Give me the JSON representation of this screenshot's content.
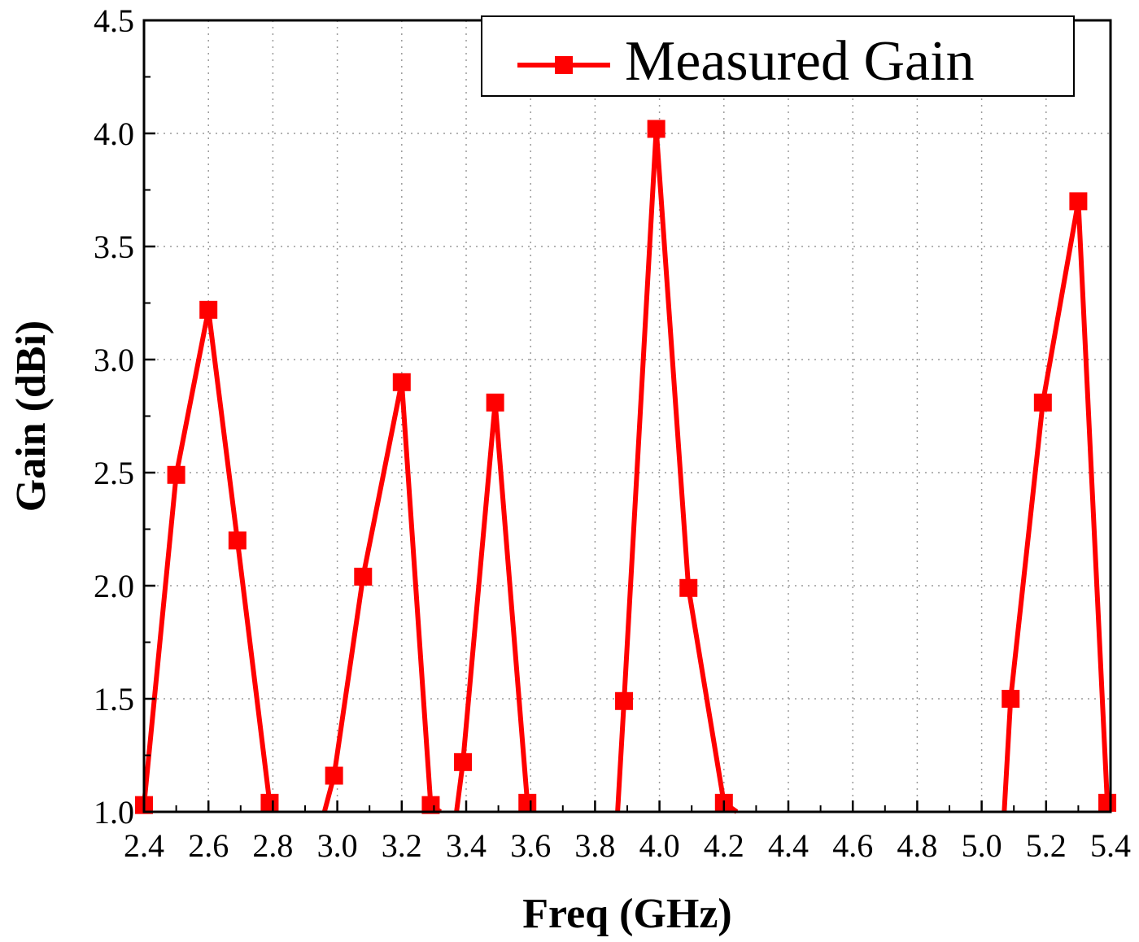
{
  "chart_data": {
    "type": "line",
    "title": "",
    "xlabel": "Freq (GHz)",
    "ylabel": "Gain (dBi)",
    "xlim": [
      2.4,
      5.4
    ],
    "ylim": [
      1.0,
      4.5
    ],
    "x_ticks": [
      "2.4",
      "2.6",
      "2.8",
      "3.0",
      "3.2",
      "3.4",
      "3.6",
      "3.8",
      "4.0",
      "4.2",
      "4.4",
      "4.6",
      "4.8",
      "5.0",
      "5.2",
      "5.4"
    ],
    "y_ticks": [
      "1.0",
      "1.5",
      "2.0",
      "2.5",
      "3.0",
      "3.5",
      "4.0",
      "4.5"
    ],
    "grid": true,
    "legend_position": "top-right",
    "series": [
      {
        "name": "Measured Gain",
        "color": "#ff0000",
        "marker": "square",
        "segments": [
          {
            "x": [
              2.4,
              2.5,
              2.6,
              2.69,
              2.79
            ],
            "y": [
              1.03,
              2.49,
              3.22,
              2.2,
              1.04
            ]
          },
          {
            "x": [
              2.96,
              2.99,
              3.08,
              3.2,
              3.29,
              3.32
            ],
            "y": [
              1.0,
              1.16,
              2.04,
              2.9,
              1.03,
              1.0
            ]
          },
          {
            "x": [
              3.37,
              3.39,
              3.49,
              3.59,
              3.6
            ],
            "y": [
              1.0,
              1.22,
              2.81,
              1.04,
              1.0
            ]
          },
          {
            "x": [
              3.87,
              3.89,
              3.99,
              4.09,
              4.2,
              4.24
            ],
            "y": [
              1.0,
              1.49,
              4.02,
              1.99,
              1.04,
              1.0
            ]
          },
          {
            "x": [
              5.07,
              5.09,
              5.19,
              5.3,
              5.39
            ],
            "y": [
              1.0,
              1.5,
              2.81,
              3.7,
              1.04
            ]
          }
        ],
        "markers": {
          "x": [
            2.4,
            2.5,
            2.6,
            2.69,
            2.79,
            2.99,
            3.08,
            3.2,
            3.29,
            3.39,
            3.49,
            3.59,
            3.89,
            3.99,
            4.09,
            4.2,
            5.09,
            5.19,
            5.3,
            5.39
          ],
          "y": [
            1.03,
            2.49,
            3.22,
            2.2,
            1.04,
            1.16,
            2.04,
            2.9,
            1.03,
            1.22,
            2.81,
            1.04,
            1.49,
            4.02,
            1.99,
            1.04,
            1.5,
            2.81,
            3.7,
            1.04
          ]
        }
      }
    ]
  }
}
